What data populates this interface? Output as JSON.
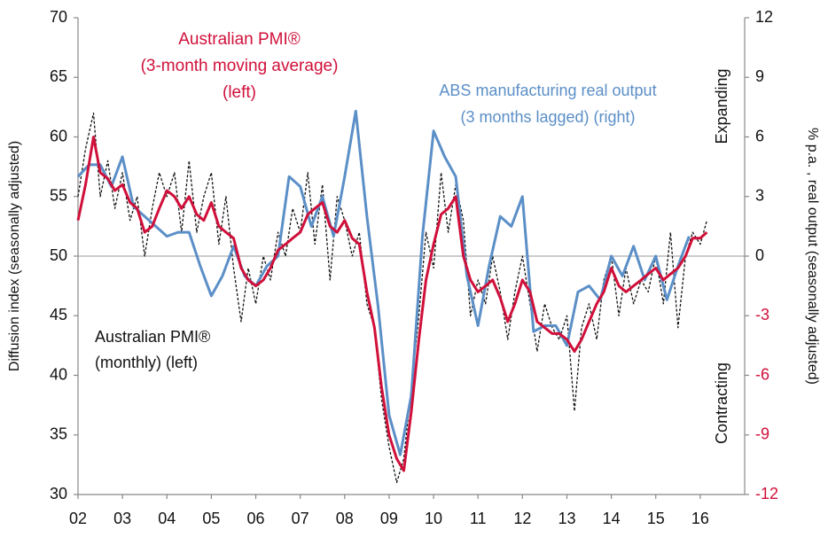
{
  "chart_data": {
    "type": "line",
    "xlim": [
      2002,
      2017
    ],
    "xticks": [
      {
        "value": 2002,
        "label": "02"
      },
      {
        "value": 2003,
        "label": "03"
      },
      {
        "value": 2004,
        "label": "04"
      },
      {
        "value": 2005,
        "label": "05"
      },
      {
        "value": 2006,
        "label": "06"
      },
      {
        "value": 2007,
        "label": "07"
      },
      {
        "value": 2008,
        "label": "08"
      },
      {
        "value": 2009,
        "label": "09"
      },
      {
        "value": 2010,
        "label": "10"
      },
      {
        "value": 2011,
        "label": "11"
      },
      {
        "value": 2012,
        "label": "12"
      },
      {
        "value": 2013,
        "label": "13"
      },
      {
        "value": 2014,
        "label": "14"
      },
      {
        "value": 2015,
        "label": "15"
      },
      {
        "value": 2016,
        "label": "16"
      }
    ],
    "ylim": [
      30,
      70
    ],
    "yticks": [
      30,
      35,
      40,
      45,
      50,
      55,
      60,
      65,
      70
    ],
    "y2lim": [
      -12,
      12
    ],
    "y2ticks": [
      -12,
      -9,
      -6,
      -3,
      0,
      3,
      6,
      9,
      12
    ],
    "y2_negative_tick_color": "#d0103a",
    "ylabel": "Diffusion index (seasonally adjusted)",
    "y2label": "% p.a. , real output (seasonally adjusted)",
    "reference_line": 50,
    "zone_labels": [
      "Expanding",
      "Contracting"
    ],
    "annotations": [
      {
        "lines": [
          "Australian PMI®",
          "(3-month moving average)",
          "(left)"
        ],
        "color": "#d0103a"
      },
      {
        "lines": [
          "ABS manufacturing real output",
          "(3 months lagged) (right)"
        ],
        "color": "#5b8fc7"
      },
      {
        "lines": [
          "Australian PMI®",
          "(monthly) (left)"
        ],
        "color": "#111111"
      }
    ],
    "series": [
      {
        "name": "Australian PMI® (monthly)",
        "color": "#111111",
        "dashed": true,
        "x": [
          2002.0,
          2002.17,
          2002.35,
          2002.5,
          2002.67,
          2002.83,
          2003.0,
          2003.17,
          2003.33,
          2003.5,
          2003.67,
          2003.83,
          2004.0,
          2004.17,
          2004.33,
          2004.5,
          2004.67,
          2004.83,
          2005.0,
          2005.17,
          2005.33,
          2005.5,
          2005.67,
          2005.83,
          2006.0,
          2006.17,
          2006.33,
          2006.5,
          2006.67,
          2006.83,
          2007.0,
          2007.17,
          2007.33,
          2007.5,
          2007.67,
          2007.83,
          2008.0,
          2008.17,
          2008.33,
          2008.5,
          2008.67,
          2008.83,
          2009.0,
          2009.17,
          2009.33,
          2009.5,
          2009.67,
          2009.83,
          2010.0,
          2010.17,
          2010.33,
          2010.5,
          2010.67,
          2010.83,
          2011.0,
          2011.17,
          2011.33,
          2011.5,
          2011.67,
          2011.83,
          2012.0,
          2012.17,
          2012.33,
          2012.5,
          2012.67,
          2012.83,
          2013.0,
          2013.17,
          2013.33,
          2013.5,
          2013.67,
          2013.83,
          2014.0,
          2014.17,
          2014.33,
          2014.5,
          2014.67,
          2014.83,
          2015.0,
          2015.17,
          2015.33,
          2015.5,
          2015.67,
          2015.83,
          2016.0,
          2016.15
        ],
        "values": [
          55,
          59,
          62,
          55,
          58,
          54,
          57,
          53,
          55,
          50,
          54,
          57,
          55,
          57,
          52,
          58,
          52,
          55,
          57,
          51,
          55,
          49,
          44.5,
          49,
          46,
          50,
          48,
          52,
          50,
          54,
          52,
          57,
          51,
          56,
          48,
          55,
          53,
          50,
          52,
          46,
          44,
          38,
          34,
          31,
          33,
          39,
          45,
          52,
          49,
          57,
          52,
          56,
          53,
          45,
          48,
          46,
          50,
          47,
          43,
          47,
          50,
          46,
          42,
          46,
          44,
          43,
          45,
          37,
          44,
          46,
          43,
          48,
          50,
          45,
          49,
          46,
          48,
          47,
          50,
          46,
          52,
          44,
          50,
          52,
          51,
          53
        ]
      },
      {
        "name": "Australian PMI® (3-month moving average)",
        "color": "#d0103a",
        "x": [
          2002.0,
          2002.17,
          2002.35,
          2002.5,
          2002.67,
          2002.83,
          2003.0,
          2003.17,
          2003.33,
          2003.5,
          2003.67,
          2003.83,
          2004.0,
          2004.17,
          2004.33,
          2004.5,
          2004.67,
          2004.83,
          2005.0,
          2005.17,
          2005.33,
          2005.5,
          2005.67,
          2005.83,
          2006.0,
          2006.17,
          2006.33,
          2006.5,
          2006.67,
          2006.83,
          2007.0,
          2007.17,
          2007.33,
          2007.5,
          2007.67,
          2007.83,
          2008.0,
          2008.17,
          2008.33,
          2008.5,
          2008.67,
          2008.83,
          2009.0,
          2009.17,
          2009.33,
          2009.5,
          2009.67,
          2009.83,
          2010.0,
          2010.17,
          2010.33,
          2010.5,
          2010.67,
          2010.83,
          2011.0,
          2011.17,
          2011.33,
          2011.5,
          2011.67,
          2011.83,
          2012.0,
          2012.17,
          2012.33,
          2012.5,
          2012.67,
          2012.83,
          2013.0,
          2013.17,
          2013.33,
          2013.5,
          2013.67,
          2013.83,
          2014.0,
          2014.17,
          2014.33,
          2014.5,
          2014.67,
          2014.83,
          2015.0,
          2015.17,
          2015.33,
          2015.5,
          2015.67,
          2015.83,
          2016.0,
          2016.15
        ],
        "values": [
          53,
          56,
          60,
          57,
          56.5,
          55.5,
          56,
          54.5,
          54,
          52,
          52.5,
          54,
          55.5,
          55,
          54,
          55,
          53.5,
          53,
          54.5,
          52.5,
          52,
          51.5,
          49,
          48,
          47.5,
          48,
          49,
          50.5,
          51,
          51.5,
          52,
          53.5,
          54,
          54.5,
          52.5,
          52,
          53,
          51.5,
          51,
          47,
          44,
          39,
          35,
          33,
          32,
          37,
          43,
          48,
          51,
          53.5,
          54,
          55,
          50,
          48,
          47,
          47.5,
          48,
          46.5,
          44.5,
          46,
          48,
          47,
          44.5,
          44,
          43.5,
          43.5,
          43,
          42,
          43,
          44.5,
          46,
          47,
          49,
          47.5,
          47,
          47.5,
          48,
          48.5,
          49,
          48,
          48.5,
          49,
          50,
          51.5,
          51.5,
          52
        ]
      },
      {
        "name": "ABS manufacturing real output (3 months lagged)",
        "color": "#5b8fc7",
        "axis": "y2",
        "x": [
          2002.0,
          2002.25,
          2002.5,
          2002.75,
          2003.0,
          2003.25,
          2003.5,
          2003.75,
          2004.0,
          2004.25,
          2004.5,
          2004.75,
          2005.0,
          2005.25,
          2005.5,
          2005.75,
          2006.0,
          2006.25,
          2006.5,
          2006.75,
          2007.0,
          2007.25,
          2007.5,
          2007.75,
          2008.0,
          2008.25,
          2008.5,
          2008.75,
          2009.0,
          2009.25,
          2009.5,
          2009.75,
          2010.0,
          2010.25,
          2010.5,
          2010.75,
          2011.0,
          2011.25,
          2011.5,
          2011.75,
          2012.0,
          2012.25,
          2012.5,
          2012.75,
          2013.0,
          2013.25,
          2013.5,
          2013.75,
          2014.0,
          2014.25,
          2014.5,
          2014.75,
          2015.0,
          2015.25,
          2015.5,
          2015.75
        ],
        "values": [
          4,
          4.6,
          4.6,
          3.5,
          5,
          2.5,
          2,
          1.5,
          1,
          1.2,
          1.2,
          -0.5,
          -2,
          -1,
          0.5,
          -1,
          -1.5,
          -0.5,
          0,
          4,
          3.5,
          1.5,
          3,
          1,
          4,
          7.3,
          2,
          -2.5,
          -8,
          -10,
          -7,
          1,
          6.3,
          5,
          4,
          -1,
          -3.5,
          -0.5,
          2,
          1.5,
          3,
          -3.8,
          -3.5,
          -3.5,
          -4.5,
          -1.8,
          -1.5,
          -2.2,
          0,
          -1,
          0.5,
          -1.2,
          0,
          -2.2,
          -0.5,
          1
        ]
      }
    ]
  }
}
